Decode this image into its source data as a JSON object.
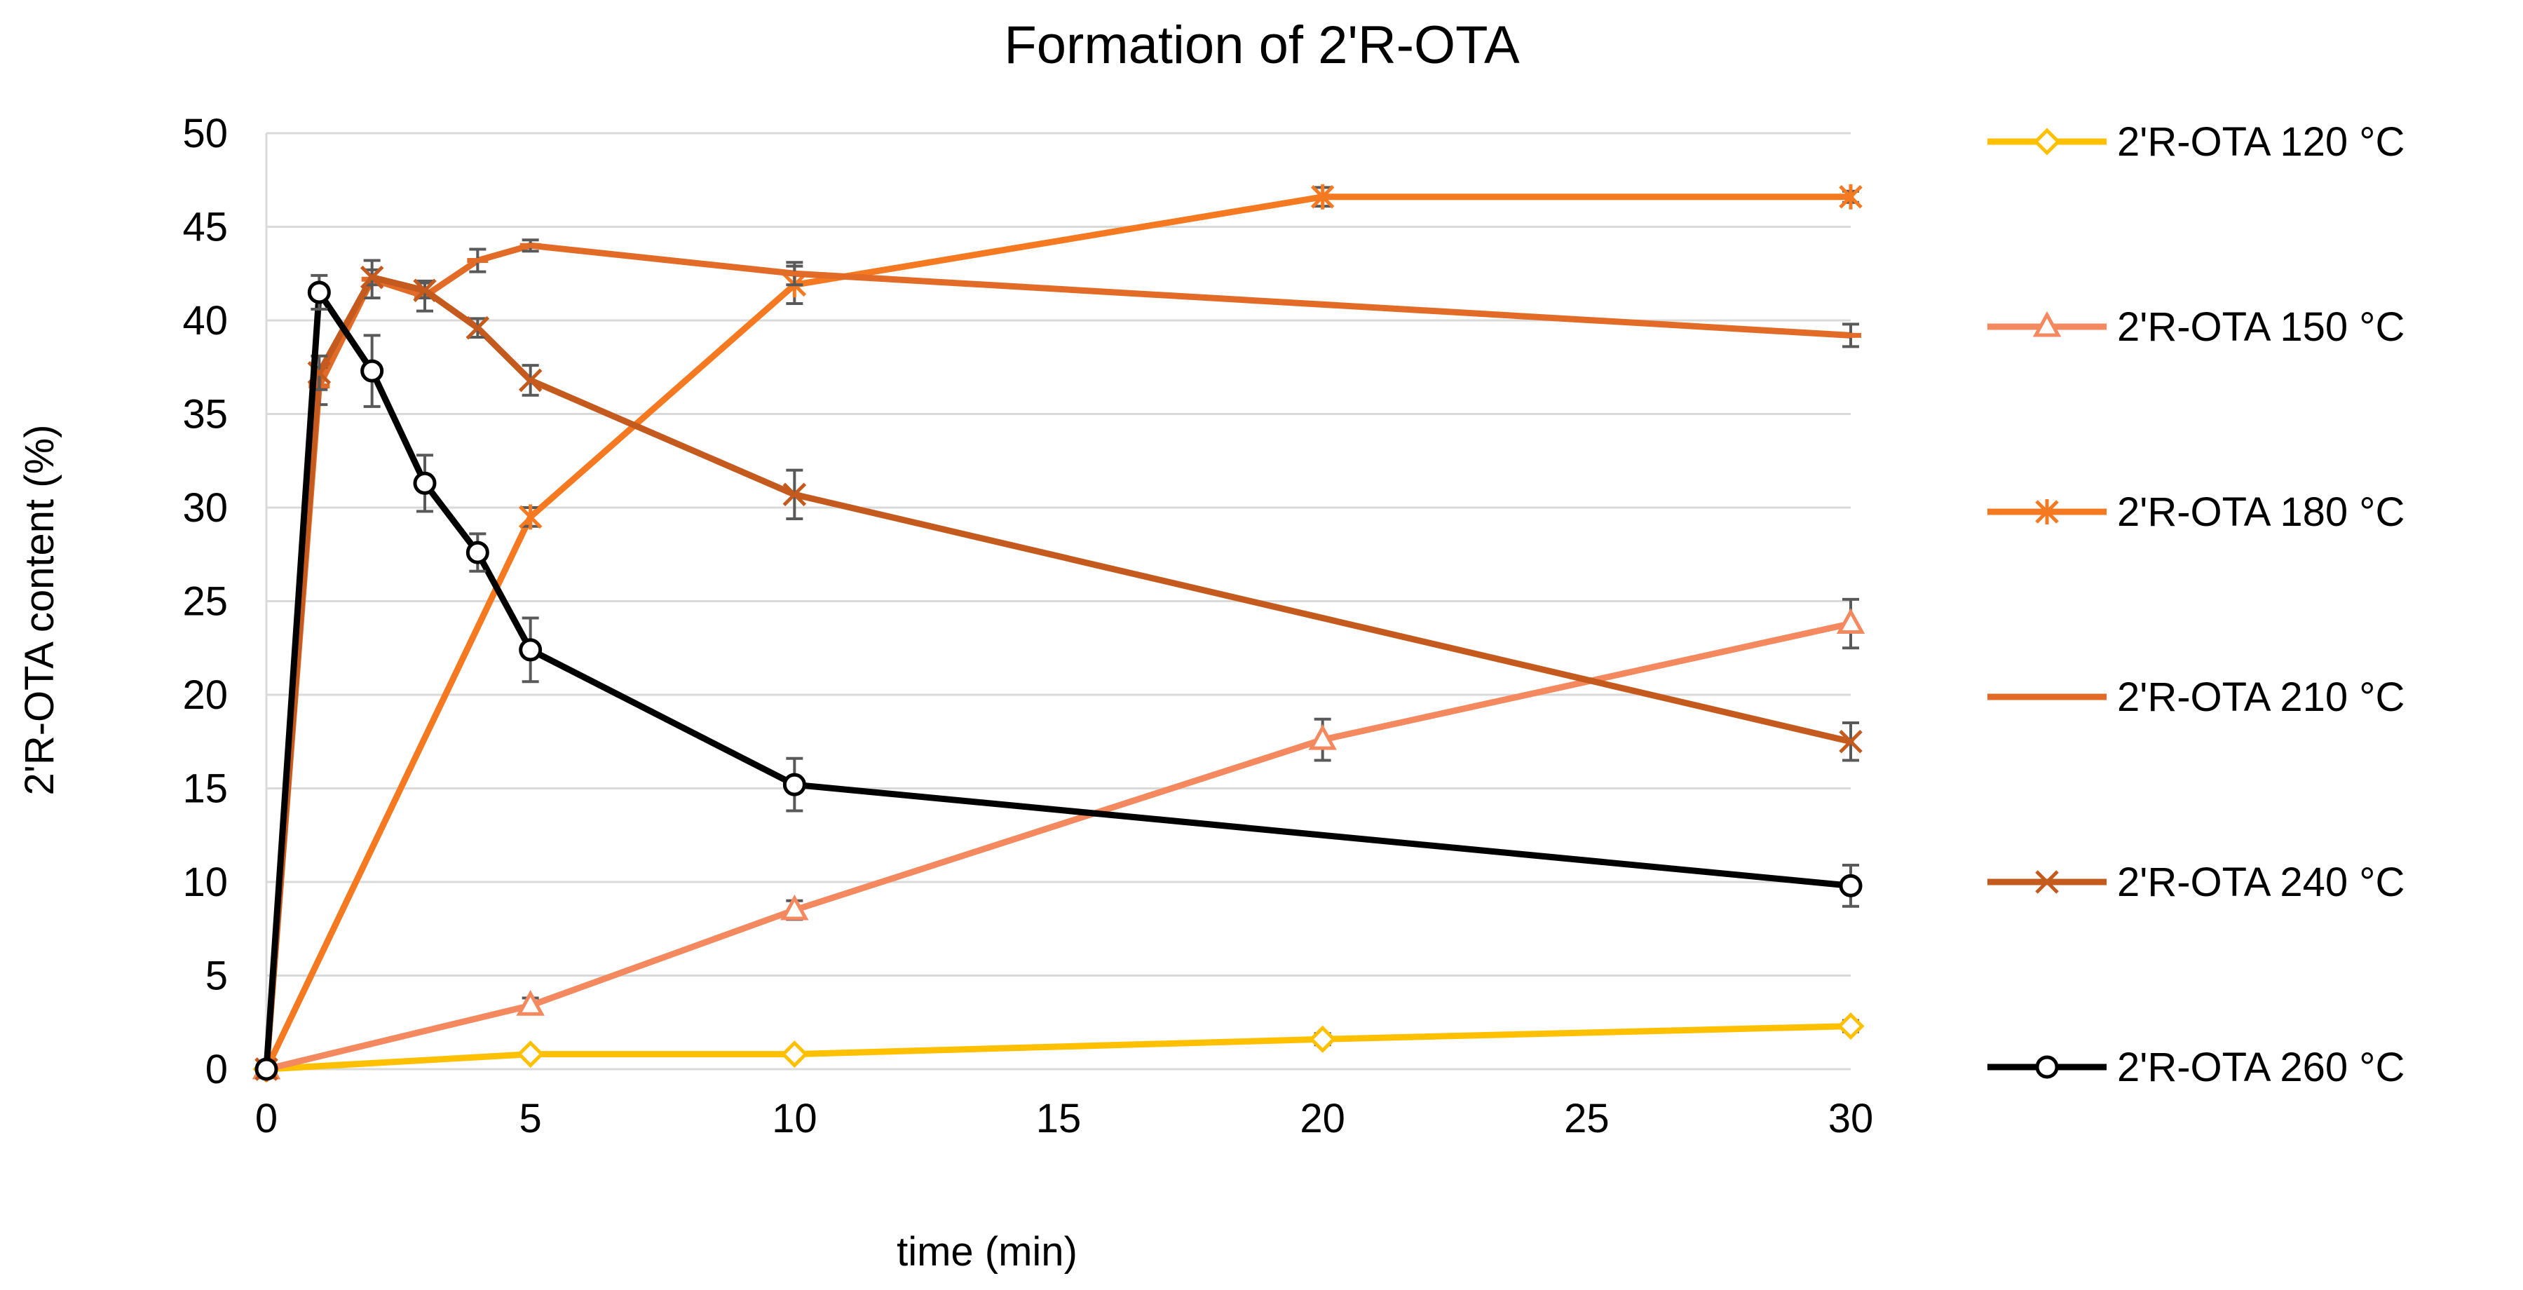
{
  "chart_data": {
    "type": "line",
    "title": "Formation of 2'R-OTA",
    "xlabel": "time (min)",
    "ylabel": "2'R-OTA  content  (%)",
    "xlim": [
      0,
      30
    ],
    "ylim": [
      0,
      50
    ],
    "x_ticks": [
      0,
      5,
      10,
      15,
      20,
      25,
      30
    ],
    "y_ticks": [
      0,
      5,
      10,
      15,
      20,
      25,
      30,
      35,
      40,
      45,
      50
    ],
    "grid": true,
    "legend_position": "right",
    "error_bar_color": "#595959",
    "series": [
      {
        "name": "2'R-OTA 120 °C",
        "color": "#FFC000",
        "marker": "diamond",
        "x": [
          0,
          5,
          10,
          20,
          30
        ],
        "y": [
          0,
          0.8,
          0.8,
          1.6,
          2.3
        ],
        "err": [
          0,
          0.2,
          0.2,
          0.3,
          0.3
        ]
      },
      {
        "name": "2'R-OTA 150 °C",
        "color": "#F4895F",
        "marker": "triangle",
        "x": [
          0,
          5,
          10,
          20,
          30
        ],
        "y": [
          0,
          3.4,
          8.5,
          17.6,
          23.8
        ],
        "err": [
          0,
          0.4,
          0.5,
          1.1,
          1.3
        ]
      },
      {
        "name": "2'R-OTA 180 °C",
        "color": "#F47920",
        "marker": "star",
        "x": [
          0,
          5,
          10,
          20,
          30
        ],
        "y": [
          0,
          29.5,
          41.9,
          46.6,
          46.6
        ],
        "err": [
          0,
          0.5,
          1.0,
          0.5,
          0.3
        ]
      },
      {
        "name": "2'R-OTA 210 °C",
        "color": "#E26B28",
        "marker": "dash",
        "x": [
          0,
          1,
          2,
          3,
          4,
          5,
          10,
          30
        ],
        "y": [
          0,
          36.5,
          42.2,
          41.3,
          43.2,
          44.0,
          42.5,
          39.2
        ],
        "err": [
          0,
          1.0,
          1.0,
          0.8,
          0.6,
          0.3,
          0.6,
          0.6
        ]
      },
      {
        "name": "2'R-OTA 240 °C",
        "color": "#C45A1E",
        "marker": "x",
        "x": [
          0,
          1,
          2,
          3,
          4,
          5,
          10,
          30
        ],
        "y": [
          0,
          37.2,
          42.3,
          41.6,
          39.6,
          36.8,
          30.7,
          17.5
        ],
        "err": [
          0,
          0.9,
          0.4,
          0.4,
          0.5,
          0.8,
          1.3,
          1.0
        ]
      },
      {
        "name": "2'R-OTA 260 °C",
        "color": "#000000",
        "marker": "circle",
        "x": [
          0,
          1,
          2,
          3,
          4,
          5,
          10,
          30
        ],
        "y": [
          0,
          41.5,
          37.3,
          31.3,
          27.6,
          22.4,
          15.2,
          9.8
        ],
        "err": [
          0,
          0.9,
          1.9,
          1.5,
          1.0,
          1.7,
          1.4,
          1.1
        ]
      }
    ]
  }
}
